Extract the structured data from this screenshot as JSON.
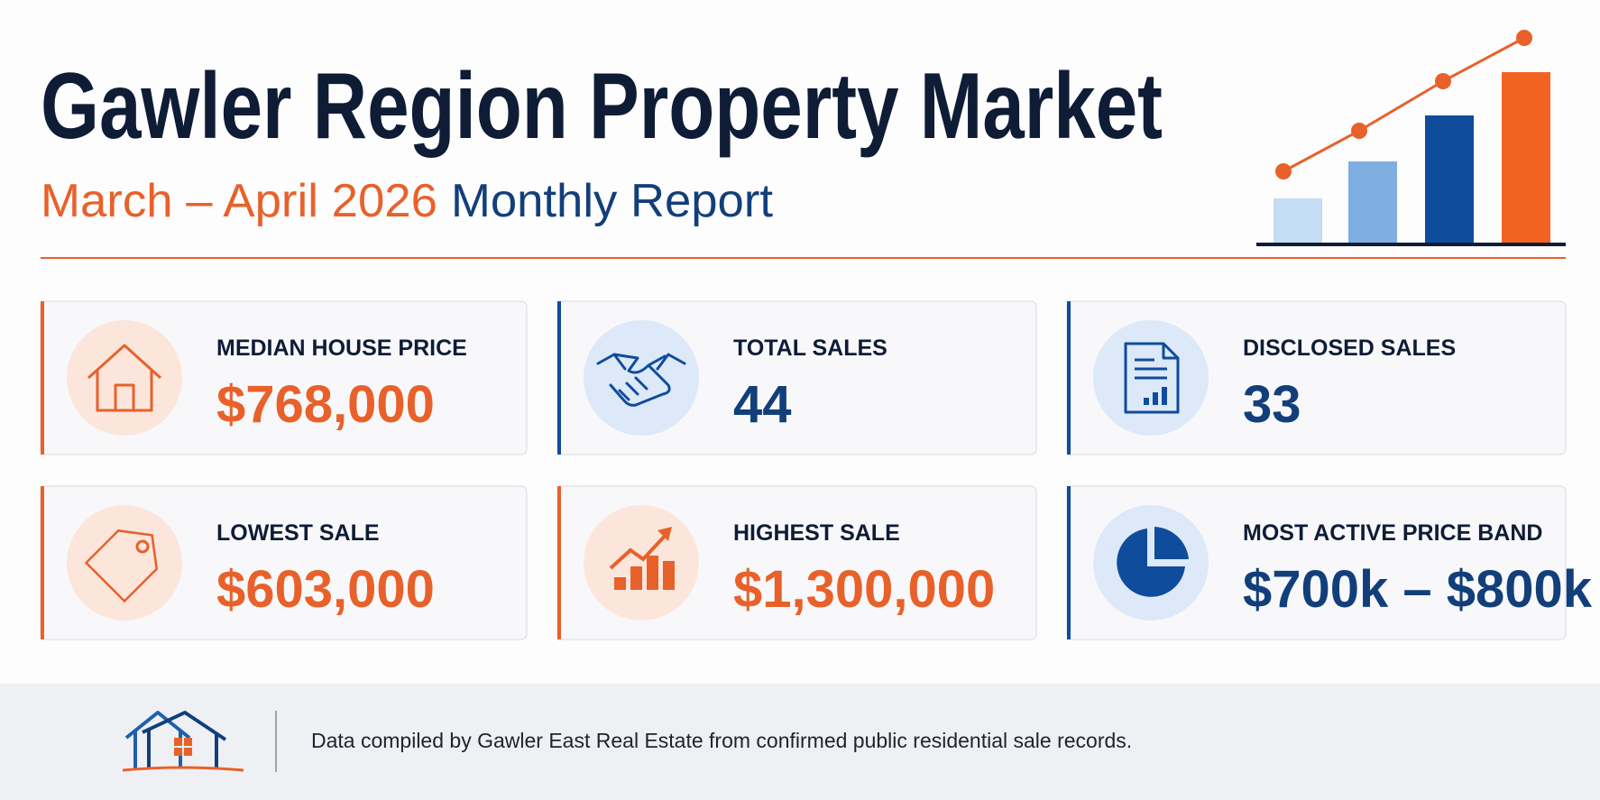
{
  "header": {
    "title": "Gawler Region Property Market",
    "subtitle_period": "March – April 2026",
    "subtitle_rest": "Monthly Report"
  },
  "cards": [
    {
      "label": "MEDIAN HOUSE PRICE",
      "value": "$768,000"
    },
    {
      "label": "TOTAL SALES",
      "value": "44"
    },
    {
      "label": "DISCLOSED SALES",
      "value": "33"
    },
    {
      "label": "LOWEST SALE",
      "value": "$603,000"
    },
    {
      "label": "HIGHEST SALE",
      "value": "$1,300,000"
    },
    {
      "label": "MOST ACTIVE PRICE BAND",
      "value": "$700k – $800k"
    }
  ],
  "footer": {
    "text": "Data compiled by Gawler East Real Estate from confirmed public residential sale records."
  }
}
